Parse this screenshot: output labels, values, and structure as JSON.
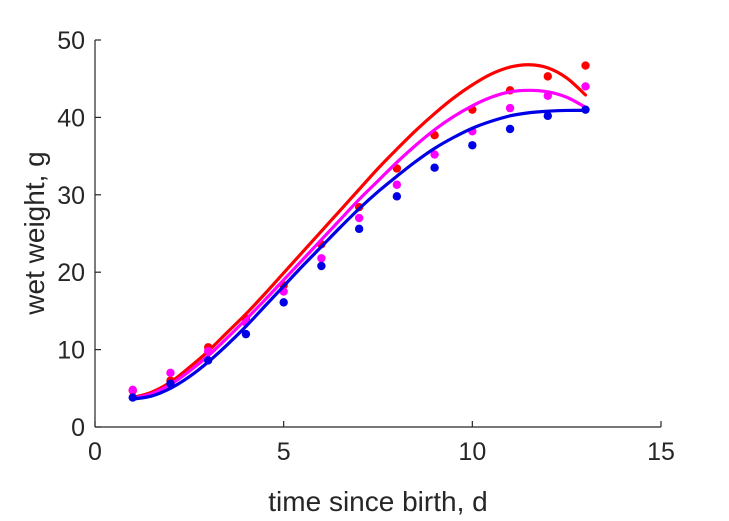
{
  "chart_data": {
    "type": "scatter",
    "xlabel": "time since birth, d",
    "ylabel": "wet weight, g",
    "xlim": [
      0,
      15
    ],
    "ylim": [
      0,
      50
    ],
    "xticks": [
      "0",
      "5",
      "10",
      "15"
    ],
    "yticks": [
      "0",
      "10",
      "20",
      "30",
      "40",
      "50"
    ],
    "grid": false,
    "legend": "none",
    "series": [
      {
        "color": "#ff0000",
        "points": {
          "x": [
            1,
            2,
            3,
            4,
            5,
            6,
            7,
            8,
            9,
            10,
            11,
            12,
            13
          ],
          "y": [
            4.7,
            6.0,
            10.3,
            14.0,
            18.3,
            23.6,
            28.4,
            33.4,
            37.7,
            41.0,
            43.5,
            45.3,
            46.7
          ]
        },
        "fit": {
          "x": [
            1,
            1.5,
            2,
            2.5,
            3,
            3.5,
            4,
            4.5,
            5,
            5.5,
            6,
            6.5,
            7,
            7.5,
            8,
            8.5,
            9,
            9.5,
            10,
            10.5,
            11,
            11.5,
            12,
            12.5,
            13
          ],
          "y": [
            3.8,
            4.5,
            5.8,
            7.7,
            9.8,
            12.2,
            14.6,
            17.2,
            19.9,
            22.6,
            25.3,
            28.0,
            30.7,
            33.4,
            35.9,
            38.3,
            40.5,
            42.5,
            44.2,
            45.6,
            46.5,
            46.8,
            46.4,
            45.1,
            42.9
          ]
        }
      },
      {
        "color": "#ff00ff",
        "points": {
          "x": [
            1,
            2,
            3,
            4,
            5,
            6,
            7,
            8,
            9,
            10,
            11,
            12,
            13
          ],
          "y": [
            4.8,
            7.0,
            9.8,
            13.5,
            17.5,
            21.8,
            27.0,
            31.3,
            35.2,
            38.2,
            41.2,
            42.8,
            44.0
          ]
        },
        "fit": {
          "x": [
            1,
            1.5,
            2,
            2.5,
            3,
            3.5,
            4,
            4.5,
            5,
            5.5,
            6,
            6.5,
            7,
            7.5,
            8,
            8.5,
            9,
            9.5,
            10,
            10.5,
            11,
            11.5,
            12,
            12.5,
            13
          ],
          "y": [
            3.7,
            4.3,
            5.5,
            7.2,
            9.2,
            11.5,
            13.9,
            16.4,
            19.0,
            21.6,
            24.2,
            26.8,
            29.4,
            31.8,
            34.2,
            36.4,
            38.4,
            40.1,
            41.5,
            42.6,
            43.3,
            43.5,
            43.3,
            42.6,
            41.3
          ]
        }
      },
      {
        "color": "#0000e6",
        "points": {
          "x": [
            1,
            2,
            3,
            4,
            5,
            6,
            7,
            8,
            9,
            10,
            11,
            12,
            13
          ],
          "y": [
            3.8,
            5.6,
            8.6,
            12.0,
            16.1,
            20.8,
            25.6,
            29.8,
            33.5,
            36.4,
            38.5,
            40.2,
            41.0
          ]
        },
        "fit": {
          "x": [
            1,
            1.5,
            2,
            2.5,
            3,
            3.5,
            4,
            4.5,
            5,
            5.5,
            6,
            6.5,
            7,
            7.5,
            8,
            8.5,
            9,
            9.5,
            10,
            10.5,
            11,
            11.5,
            12,
            12.5,
            13
          ],
          "y": [
            3.6,
            4.0,
            5.0,
            6.5,
            8.4,
            10.6,
            13.0,
            15.6,
            18.2,
            20.8,
            23.3,
            25.8,
            28.2,
            30.4,
            32.4,
            34.3,
            36.0,
            37.4,
            38.6,
            39.5,
            40.2,
            40.6,
            40.8,
            40.9,
            40.9
          ]
        }
      }
    ]
  }
}
